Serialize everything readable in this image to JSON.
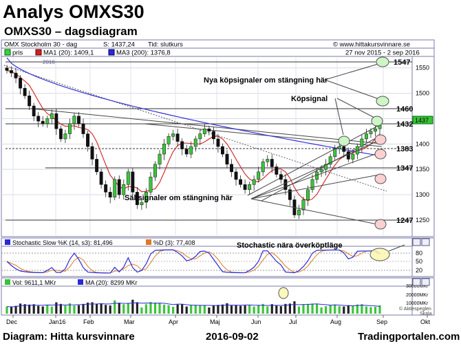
{
  "page": {
    "title": "Analys OMXS30",
    "subtitle": "OMXS30 – dagsdiagram",
    "footer_left": "Diagram: Hitta kursvinnare",
    "footer_date": "2016-09-02",
    "footer_right": "Tradingportalen.com"
  },
  "header": {
    "instrument": "OMX Stockholm 30 - dag",
    "price_info": "S: 1437,24",
    "time_info": "Tid: slutkurs",
    "site": "© www.hittakursvinnare.se",
    "legend_price": "pris",
    "legend_ma1": "MA1 (20): 1409,1",
    "legend_ma3": "MA3 (200): 1376,8",
    "date_range": "27 nov 2015 - 2 sep 2016",
    "price_tag": "1437",
    "inner_year": "2016"
  },
  "stoch_panel": {
    "label_k": "Stochastic Slow %K (14, s3): 81,496",
    "label_d": "%D (3): 77,408",
    "y_labels": [
      "80",
      "50",
      "20"
    ]
  },
  "vol_panel": {
    "label_vol": "Vol: 9611,1 MKr",
    "label_ma": "MA (20): 8299 MKr",
    "y_labels": [
      "30000MKr",
      "20000MKr",
      "10000MKr"
    ],
    "aktie": "© Aktiespeglen",
    "skala": "Skala"
  },
  "annotations": {
    "buy_signal_note": "Nya köpsignaler om stängning här",
    "buy_signal": "Köpsignal",
    "sell_signal_note": "Säljsignaler om stängning här",
    "stoch_note": "Stochastic nära överköptläge"
  },
  "chart_data": {
    "type": "candlestick",
    "title": "OMXS30 – dagsdiagram",
    "x_ticks": [
      "Dec",
      "Jan16",
      "Feb",
      "Mar",
      "Apr",
      "Maj",
      "Jun",
      "Jul",
      "Aug",
      "Sep",
      "Okt"
    ],
    "y_ticks": [
      1250,
      1300,
      1350,
      1400,
      1450,
      1500,
      1550
    ],
    "ylim": [
      1220,
      1570
    ],
    "levels": [
      1547,
      1460,
      1432,
      1383,
      1347,
      1247
    ],
    "last_close": 1437.24,
    "ma1_period": 20,
    "ma1_last": 1409.1,
    "ma3_period": 200,
    "ma3_last": 1376.8,
    "series_close": [
      1545,
      1540,
      1530,
      1510,
      1495,
      1475,
      1455,
      1445,
      1440,
      1450,
      1460,
      1430,
      1410,
      1420,
      1440,
      1455,
      1440,
      1420,
      1395,
      1370,
      1345,
      1320,
      1305,
      1295,
      1330,
      1300,
      1320,
      1345,
      1305,
      1280,
      1285,
      1305,
      1335,
      1360,
      1380,
      1400,
      1415,
      1420,
      1405,
      1390,
      1380,
      1395,
      1410,
      1420,
      1430,
      1425,
      1410,
      1395,
      1380,
      1360,
      1345,
      1330,
      1320,
      1310,
      1320,
      1330,
      1345,
      1365,
      1370,
      1355,
      1340,
      1330,
      1310,
      1290,
      1260,
      1270,
      1290,
      1310,
      1330,
      1345,
      1350,
      1360,
      1375,
      1390,
      1395,
      1385,
      1370,
      1380,
      1395,
      1410,
      1420,
      1425,
      1430,
      1437
    ],
    "stoch_k_last": 81.496,
    "stoch_d_last": 77.408,
    "stoch_levels": [
      80,
      50,
      20
    ],
    "volume_last_mkr": 9611.1,
    "volume_ma20_mkr": 8299,
    "volume_ylim": [
      0,
      30000
    ]
  }
}
